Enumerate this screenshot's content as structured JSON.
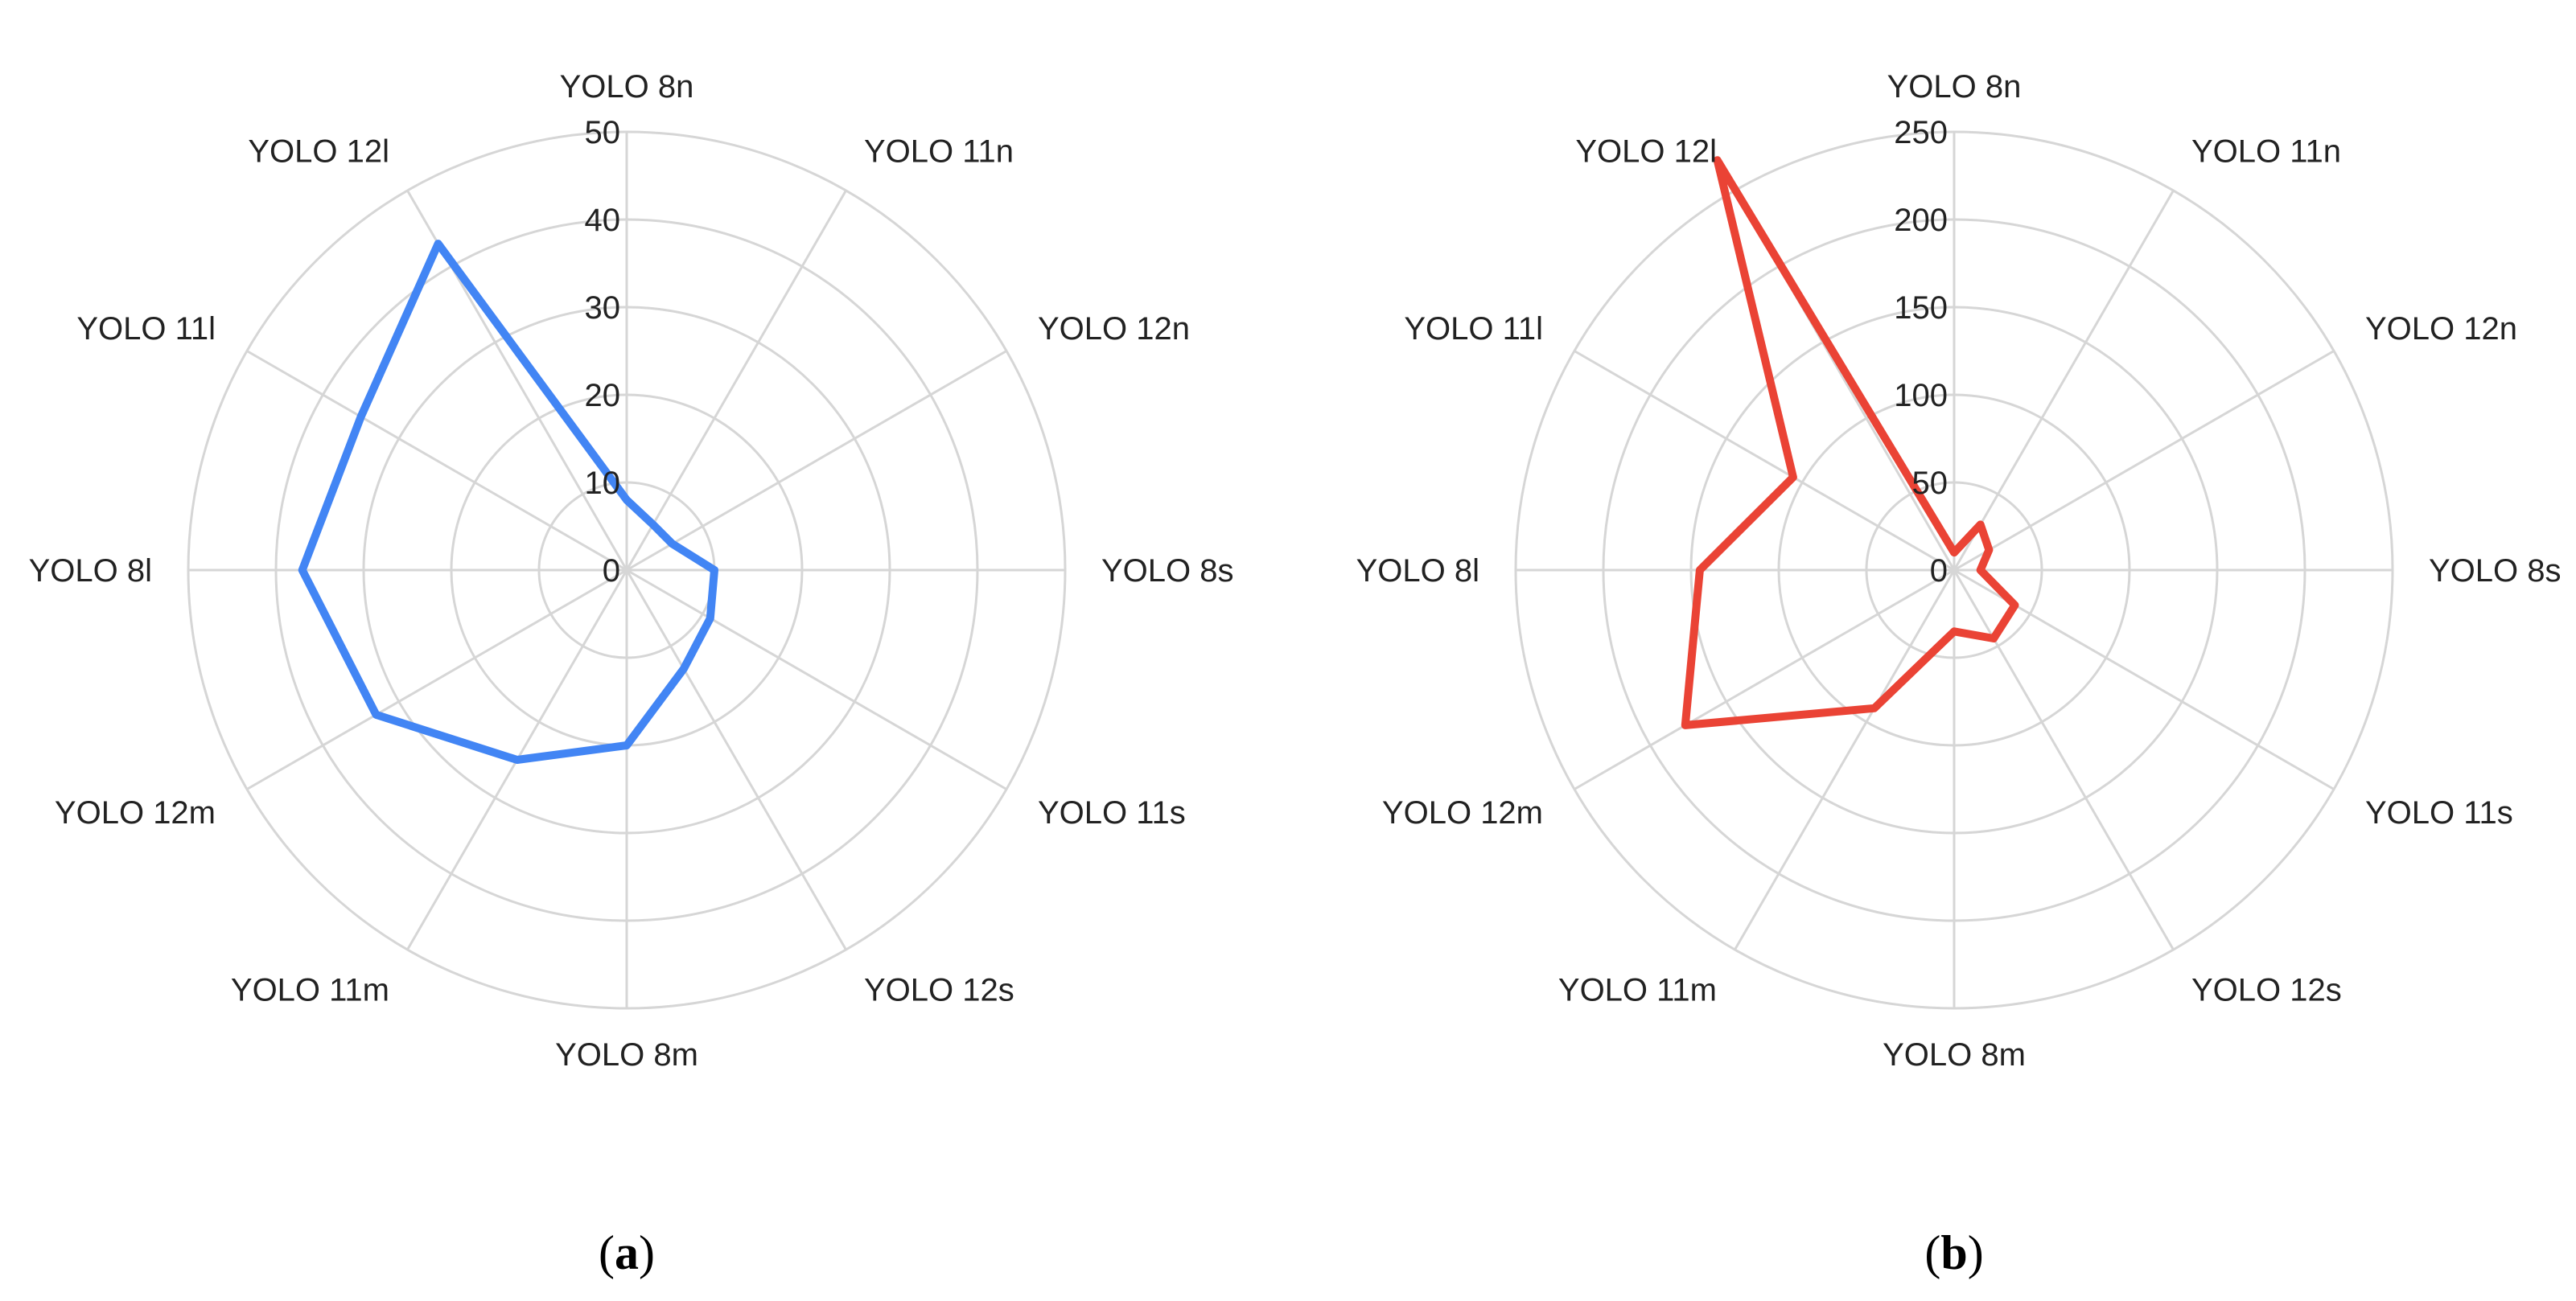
{
  "chart_data": [
    {
      "type": "radar",
      "caption": "(a)",
      "caption_bold": "a",
      "categories": [
        "YOLO 8n",
        "YOLO 11n",
        "YOLO 12n",
        "YOLO 8s",
        "YOLO 11s",
        "YOLO 12s",
        "YOLO 8m",
        "YOLO 11m",
        "YOLO 12m",
        "YOLO 8l",
        "YOLO 11l",
        "YOLO 12l"
      ],
      "rlim": [
        0,
        50
      ],
      "ticks": [
        0,
        10,
        20,
        30,
        40,
        50
      ],
      "tick_labels": [
        "0",
        "10",
        "20",
        "30",
        "40",
        "50"
      ],
      "grid": true,
      "series": [
        {
          "values": [
            8,
            6,
            6,
            10,
            11,
            13,
            20,
            25,
            33,
            37,
            35,
            43
          ],
          "color": "#4285f4"
        }
      ]
    },
    {
      "type": "radar",
      "caption": "(b)",
      "caption_bold": "b",
      "categories": [
        "YOLO 8n",
        "YOLO 11n",
        "YOLO 12n",
        "YOLO 8s",
        "YOLO 11s",
        "YOLO 12s",
        "YOLO 8m",
        "YOLO 11m",
        "YOLO 12m",
        "YOLO 8l",
        "YOLO 11l",
        "YOLO 12l"
      ],
      "rlim": [
        0,
        250
      ],
      "ticks": [
        0,
        50,
        100,
        150,
        200,
        250
      ],
      "tick_labels": [
        "0",
        "50",
        "100",
        "150",
        "200",
        "250"
      ],
      "grid": true,
      "series": [
        {
          "values": [
            10,
            30,
            23,
            15,
            40,
            45,
            35,
            91,
            177,
            145,
            106,
            270
          ],
          "color": "#ea4335"
        }
      ]
    }
  ]
}
